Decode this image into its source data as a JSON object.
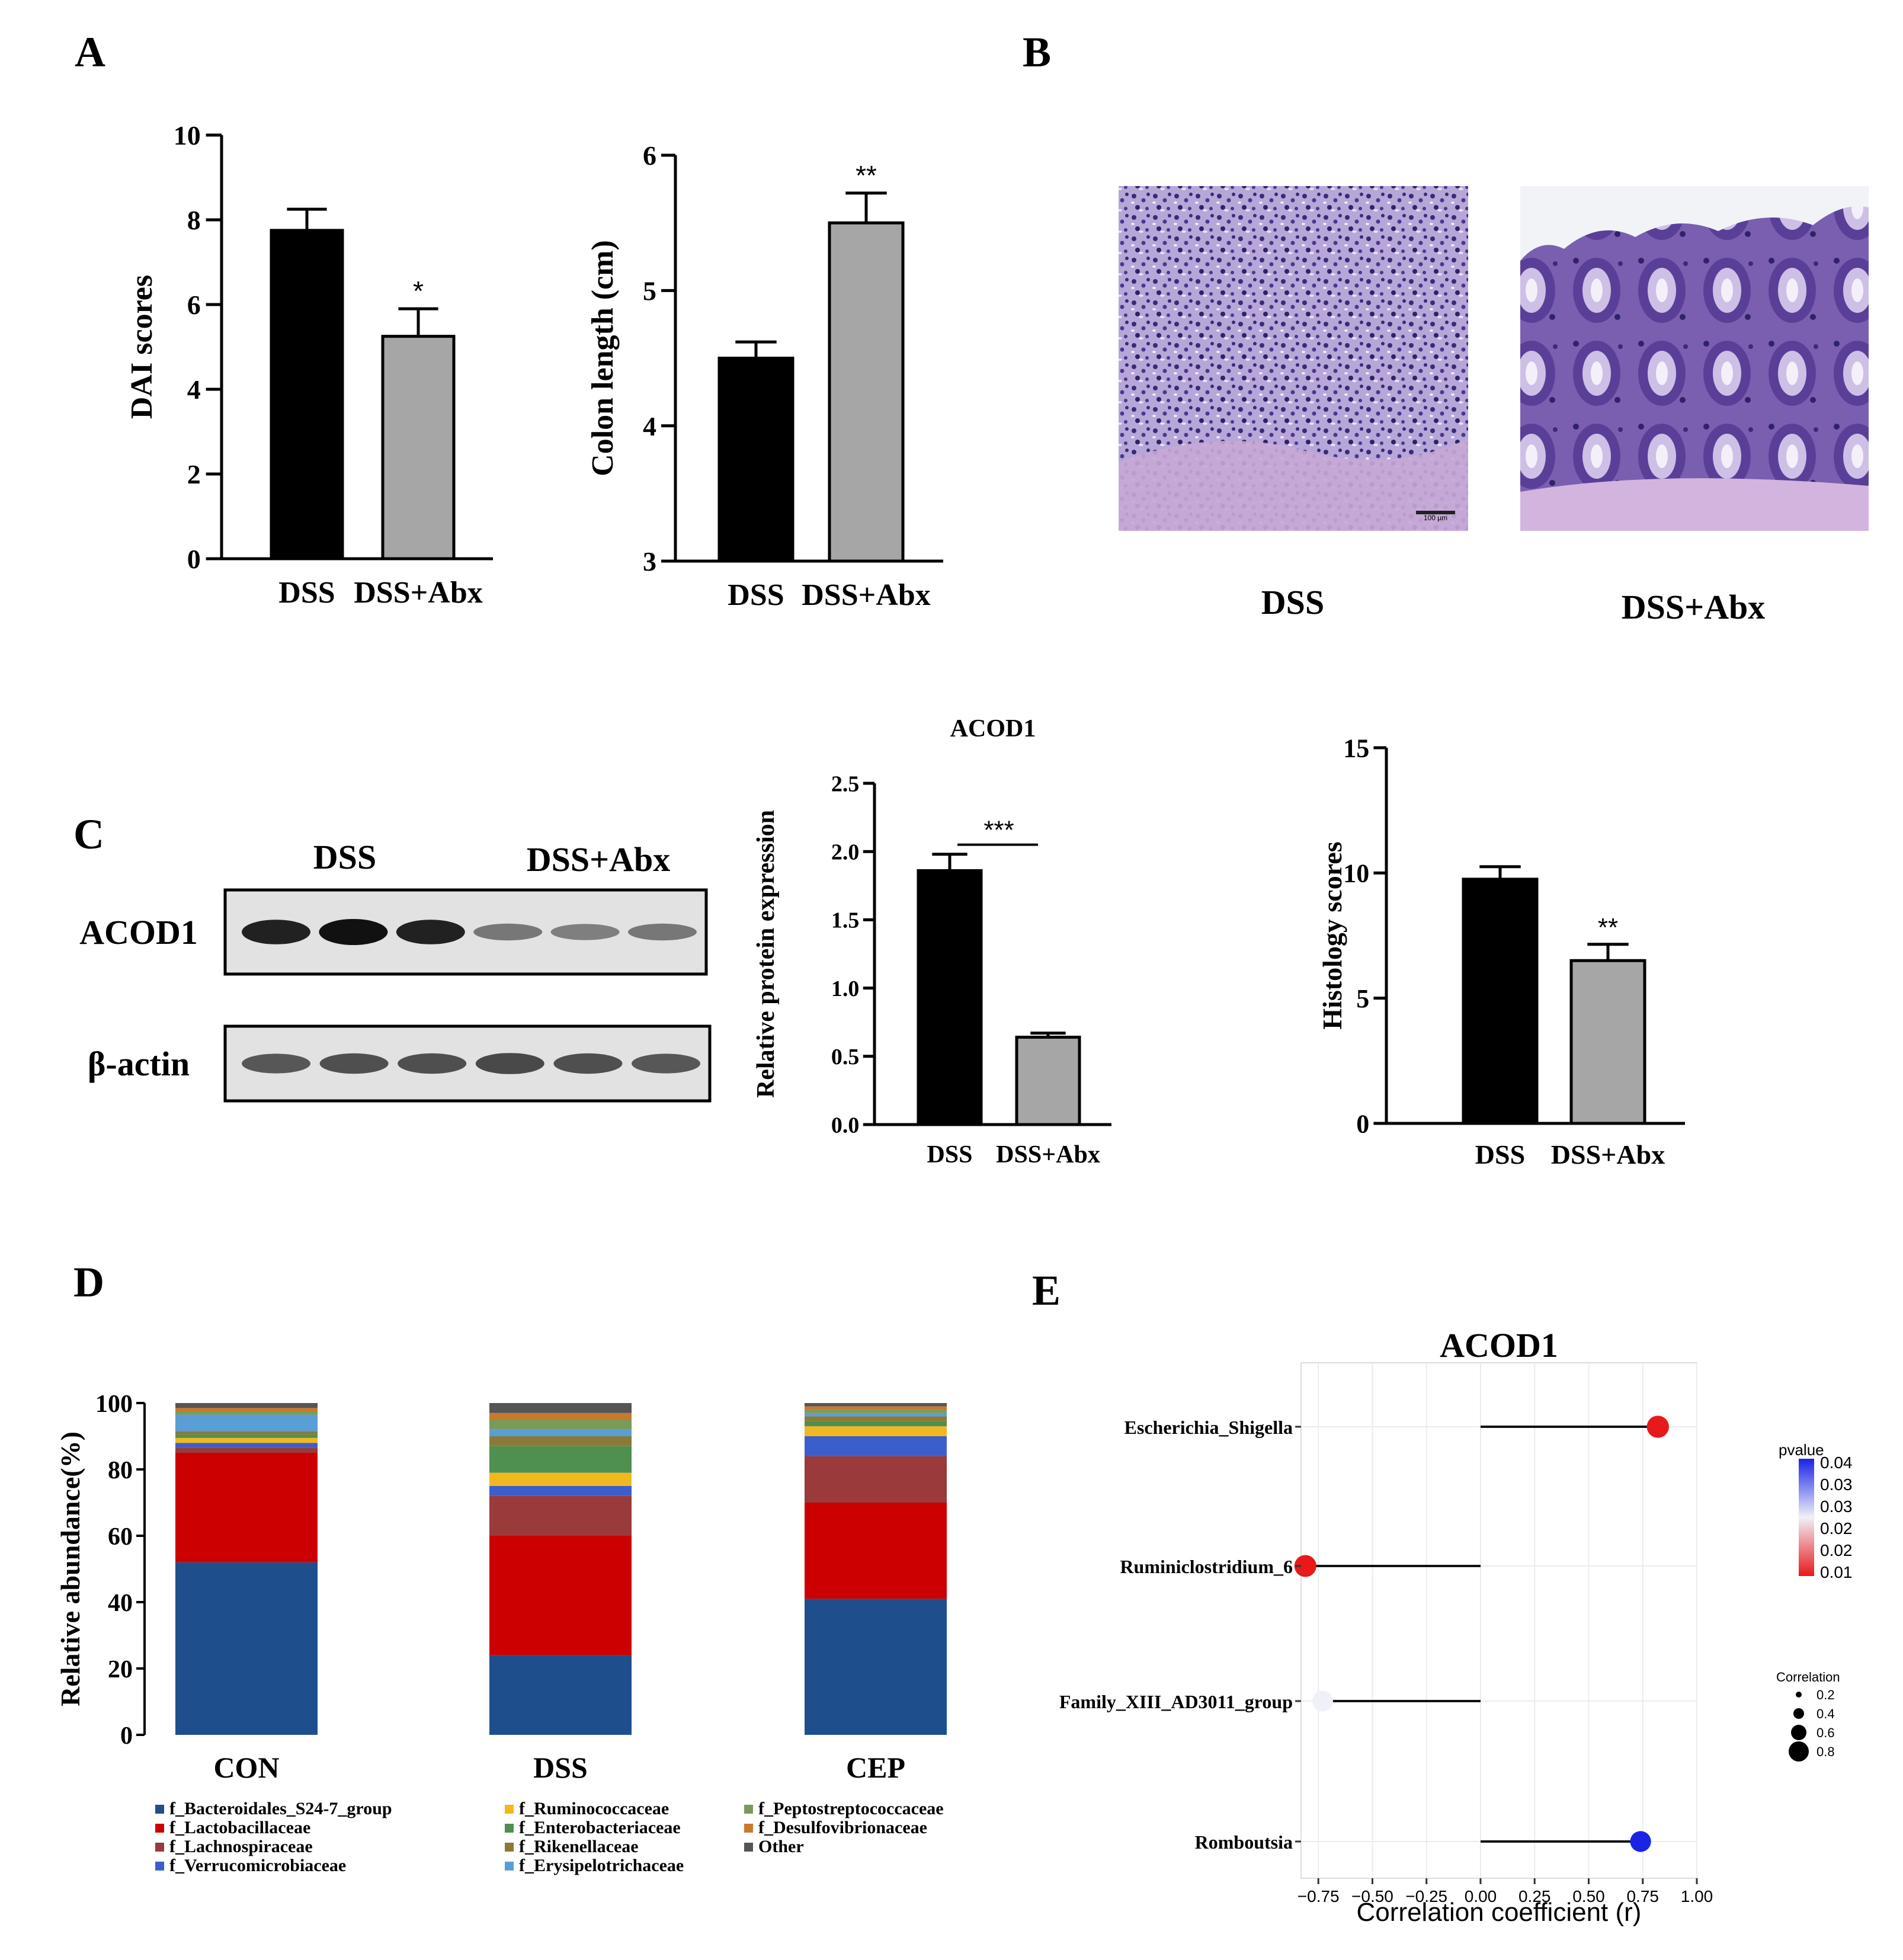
{
  "panel_labels": {
    "a": "A",
    "b": "B",
    "c": "C",
    "d": "D",
    "e": "E"
  },
  "colors": {
    "dss_bar": "#000000",
    "abx_bar": "#a6a6a6",
    "tissue": "#9a84c6",
    "nuclei": "#3a2a7a",
    "pvalue_low": "#e8191b",
    "pvalue_high": "#1a24e6"
  },
  "chart_data": [
    {
      "id": "A1",
      "type": "bar",
      "title": "",
      "ylabel": "DAI scores",
      "categories": [
        "DSS",
        "DSS+Abx"
      ],
      "values": [
        7.75,
        5.25
      ],
      "errors": [
        0.5,
        0.65
      ],
      "significance": [
        "",
        "*"
      ],
      "ylim": [
        0,
        10
      ],
      "yticks": [
        "0",
        "2",
        "4",
        "6",
        "8",
        "10"
      ]
    },
    {
      "id": "A2",
      "type": "bar",
      "title": "",
      "ylabel": "Colon length (cm)",
      "categories": [
        "DSS",
        "DSS+Abx"
      ],
      "values": [
        4.5,
        5.5
      ],
      "errors": [
        0.12,
        0.22
      ],
      "significance": [
        "",
        "**"
      ],
      "ylim": [
        3,
        6
      ],
      "yticks": [
        "3",
        "4",
        "5",
        "6"
      ]
    },
    {
      "id": "C1",
      "type": "bar",
      "title": "ACOD1",
      "ylabel": "Relative protein expression",
      "categories": [
        "DSS",
        "DSS+Abx"
      ],
      "values": [
        1.86,
        0.64
      ],
      "errors": [
        0.12,
        0.03
      ],
      "significance_bracket": "***",
      "ylim": [
        0,
        2.5
      ],
      "yticks": [
        "0.0",
        "0.5",
        "1.0",
        "1.5",
        "2.0",
        "2.5"
      ]
    },
    {
      "id": "C2",
      "type": "bar",
      "title": "",
      "ylabel": "Histology scores",
      "categories": [
        "DSS",
        "DSS+Abx"
      ],
      "values": [
        9.75,
        6.5
      ],
      "errors": [
        0.5,
        0.65
      ],
      "significance": [
        "",
        "**"
      ],
      "ylim": [
        0,
        15
      ],
      "yticks": [
        "0",
        "5",
        "10",
        "15"
      ]
    },
    {
      "id": "D",
      "type": "bar",
      "stacked": true,
      "title": "",
      "ylabel": "Relative abundance(%)",
      "categories": [
        "CON",
        "DSS",
        "CEP"
      ],
      "ylim": [
        0,
        100
      ],
      "yticks": [
        "0",
        "20",
        "40",
        "60",
        "80",
        "100"
      ],
      "series": [
        {
          "name": "f_Bacteroidales_S24-7_group",
          "color": "#1f4e8c",
          "values": [
            52,
            24,
            41
          ]
        },
        {
          "name": "f_Lactobacillaceae",
          "color": "#cc0000",
          "values": [
            33,
            36,
            29
          ]
        },
        {
          "name": "f_Lachnospiraceae",
          "color": "#9a3a3a",
          "values": [
            1.5,
            12,
            14
          ]
        },
        {
          "name": "f_Verrucomicrobiaceae",
          "color": "#3a5fcd",
          "values": [
            1.5,
            3,
            6
          ]
        },
        {
          "name": "f_Ruminococcaceae",
          "color": "#f2b820",
          "values": [
            1.5,
            4,
            3
          ]
        },
        {
          "name": "f_Enterobacteriaceae",
          "color": "#4f8f4f",
          "values": [
            1,
            8,
            1.5
          ]
        },
        {
          "name": "f_Rikenellaceae",
          "color": "#8a7a3a",
          "values": [
            1,
            3,
            1.5
          ]
        },
        {
          "name": "f_Erysipelotrichaceae",
          "color": "#5a9ed6",
          "values": [
            5,
            2,
            1
          ]
        },
        {
          "name": "f_Peptostreptococcaceae",
          "color": "#7a9a5a",
          "values": [
            1,
            3,
            1
          ]
        },
        {
          "name": "f_Desulfovibrionaceae",
          "color": "#c87a2a",
          "values": [
            1,
            2,
            1
          ]
        },
        {
          "name": "Other",
          "color": "#555555",
          "values": [
            1.5,
            3,
            1
          ]
        }
      ]
    },
    {
      "id": "E",
      "type": "scatter",
      "subtype": "lollipop",
      "title": "ACOD1",
      "xlabel": "Correlation coefficient (r)",
      "xlim": [
        -0.83,
        1.0
      ],
      "xticks": [
        "−0.75",
        "−0.50",
        "−0.25",
        "0.00",
        "0.25",
        "0.50",
        "0.75",
        "1.00"
      ],
      "categories": [
        "Escherichia_Shigella",
        "Ruminiclostridium_6",
        "Family_XIII_AD3011_group",
        "Romboutsia"
      ],
      "r": [
        0.82,
        -0.81,
        -0.73,
        0.74
      ],
      "pvalue": [
        0.01,
        0.01,
        0.025,
        0.04
      ],
      "legend_pvalue": {
        "title": "pvalue",
        "ticks": [
          "0.04",
          "0.03",
          "0.03",
          "0.02",
          "0.02",
          "0.01"
        ]
      },
      "legend_correlation": {
        "title": "Correlation",
        "ticks": [
          "0.2",
          "0.4",
          "0.6",
          "0.8"
        ]
      }
    }
  ],
  "panel_b": {
    "labels": [
      "DSS",
      "DSS+Abx"
    ],
    "scalebar": "100 μm"
  },
  "blot": {
    "group_labels": [
      "DSS",
      "DSS+Abx"
    ],
    "rows": [
      {
        "label": "ACOD1",
        "intensities": [
          0.9,
          1.0,
          0.9,
          0.35,
          0.3,
          0.35
        ]
      },
      {
        "label": "β-actin",
        "intensities": [
          0.55,
          0.6,
          0.6,
          0.65,
          0.6,
          0.55
        ]
      }
    ]
  }
}
